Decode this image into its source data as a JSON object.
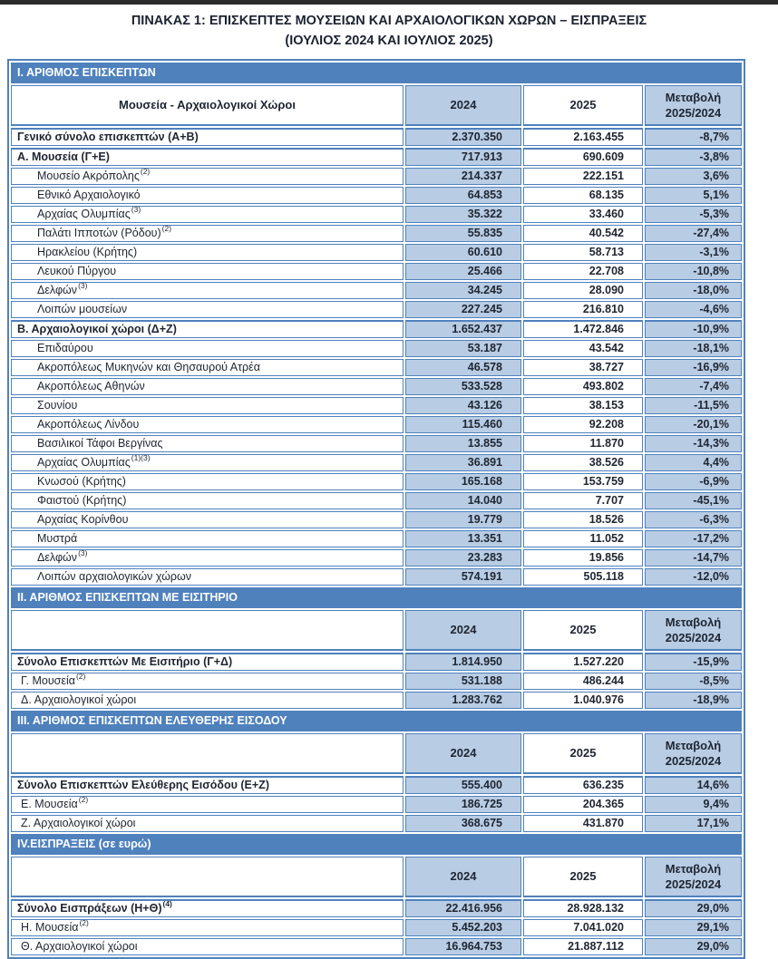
{
  "colors": {
    "accent_blue": "#4F81BD",
    "light_blue": "#B8CCE4",
    "border_blue": "#4F81BD",
    "text_dark": "#1E2531",
    "top_strip": "#2B2B2B"
  },
  "title": {
    "line1": "ΠΙΝΑΚΑΣ 1: ΕΠΙΣΚΕΠΤΕΣ ΜΟΥΣΕΙΩΝ ΚΑΙ ΑΡΧΑΙΟΛΟΓΙΚΩΝ ΧΩΡΩΝ – ΕΙΣΠΡΑΞΕΙΣ",
    "line2": "(ΙΟΥΛΙΟΣ 2024 ΚΑΙ ΙΟΥΛΙΟΣ 2025)"
  },
  "table": {
    "year_headers": {
      "y2024": "2024",
      "y2025": "2025",
      "change": "Μεταβολή\n2025/2024"
    },
    "sections": [
      {
        "title": "Ι. ΑΡΙΘΜΟΣ ΕΠΙΣΚΕΠΤΩΝ",
        "header_label": "Μουσεία - Αρχαιολογικοί Χώροι",
        "rows": [
          {
            "label": "Γενικό σύνολο επισκεπτών (Α+Β)",
            "sup": "",
            "v2024": "2.370.350",
            "v2025": "2.163.455",
            "change": "-8,7%",
            "style": "total"
          },
          {
            "label": "Α. Μουσεία (Γ+Ε)",
            "sup": "",
            "v2024": "717.913",
            "v2025": "690.609",
            "change": "-3,8%",
            "style": "total"
          },
          {
            "label": "Μουσείο Ακρόπολης",
            "sup": "(2)",
            "v2024": "214.337",
            "v2025": "222.151",
            "change": "3,6%",
            "style": "sub"
          },
          {
            "label": "Εθνικό Αρχαιολογικό",
            "sup": "",
            "v2024": "64.853",
            "v2025": "68.135",
            "change": "5,1%",
            "style": "sub"
          },
          {
            "label": "Αρχαίας Ολυμπίας",
            "sup": "(3)",
            "v2024": "35.322",
            "v2025": "33.460",
            "change": "-5,3%",
            "style": "sub"
          },
          {
            "label": "Παλάτι Ιπποτών (Ρόδου)",
            "sup": "(2)",
            "v2024": "55.835",
            "v2025": "40.542",
            "change": "-27,4%",
            "style": "sub"
          },
          {
            "label": "Ηρακλείου (Κρήτης)",
            "sup": "",
            "v2024": "60.610",
            "v2025": "58.713",
            "change": "-3,1%",
            "style": "sub"
          },
          {
            "label": "Λευκού Πύργου",
            "sup": "",
            "v2024": "25.466",
            "v2025": "22.708",
            "change": "-10,8%",
            "style": "sub"
          },
          {
            "label": "Δελφών",
            "sup": "(3)",
            "v2024": "34.245",
            "v2025": "28.090",
            "change": "-18,0%",
            "style": "sub"
          },
          {
            "label": "Λοιπών μουσείων",
            "sup": "",
            "v2024": "227.245",
            "v2025": "216.810",
            "change": "-4,6%",
            "style": "sub"
          },
          {
            "label": "Β. Αρχαιολογικοί χώροι (Δ+Ζ)",
            "sup": "",
            "v2024": "1.652.437",
            "v2025": "1.472.846",
            "change": "-10,9%",
            "style": "total"
          },
          {
            "label": "Επιδαύρου",
            "sup": "",
            "v2024": "53.187",
            "v2025": "43.542",
            "change": "-18,1%",
            "style": "sub"
          },
          {
            "label": "Ακροπόλεως Μυκηνών και Θησαυρού Ατρέα",
            "sup": "",
            "v2024": "46.578",
            "v2025": "38.727",
            "change": "-16,9%",
            "style": "sub"
          },
          {
            "label": "Ακροπόλεως Αθηνών",
            "sup": "",
            "v2024": "533.528",
            "v2025": "493.802",
            "change": "-7,4%",
            "style": "sub"
          },
          {
            "label": "Σουνίου",
            "sup": "",
            "v2024": "43.126",
            "v2025": "38.153",
            "change": "-11,5%",
            "style": "sub"
          },
          {
            "label": "Ακροπόλεως Λίνδου",
            "sup": "",
            "v2024": "115.460",
            "v2025": "92.208",
            "change": "-20,1%",
            "style": "sub"
          },
          {
            "label": "Βασιλικοί Τάφοι Βεργίνας",
            "sup": "",
            "v2024": "13.855",
            "v2025": "11.870",
            "change": "-14,3%",
            "style": "sub"
          },
          {
            "label": "Αρχαίας Ολυμπίας",
            "sup": "(1)(3)",
            "v2024": "36.891",
            "v2025": "38.526",
            "change": "4,4%",
            "style": "sub"
          },
          {
            "label": "Κνωσού (Κρήτης)",
            "sup": "",
            "v2024": "165.168",
            "v2025": "153.759",
            "change": "-6,9%",
            "style": "sub"
          },
          {
            "label": "Φαιστού (Κρήτης)",
            "sup": "",
            "v2024": "14.040",
            "v2025": "7.707",
            "change": "-45,1%",
            "style": "sub"
          },
          {
            "label": "Αρχαίας Κορίνθου",
            "sup": "",
            "v2024": "19.779",
            "v2025": "18.526",
            "change": "-6,3%",
            "style": "sub"
          },
          {
            "label": "Μυστρά",
            "sup": "",
            "v2024": "13.351",
            "v2025": "11.052",
            "change": "-17,2%",
            "style": "sub"
          },
          {
            "label": "Δελφών",
            "sup": "(3)",
            "v2024": "23.283",
            "v2025": "19.856",
            "change": "-14,7%",
            "style": "sub"
          },
          {
            "label": "Λοιπών αρχαιολογικών χώρων",
            "sup": "",
            "v2024": "574.191",
            "v2025": "505.118",
            "change": "-12,0%",
            "style": "sub"
          }
        ]
      },
      {
        "title": "ΙΙ. ΑΡΙΘΜΟΣ ΕΠΙΣΚΕΠΤΩΝ ΜΕ ΕΙΣΙΤΗΡΙΟ",
        "header_label": "",
        "rows": [
          {
            "label": "Σύνολο Επισκεπτών Με Εισιτήριο (Γ+Δ)",
            "sup": "",
            "v2024": "1.814.950",
            "v2025": "1.527.220",
            "change": "-15,9%",
            "style": "total"
          },
          {
            "label": "Γ. Μουσεία",
            "sup": "(2)",
            "v2024": "531.188",
            "v2025": "486.244",
            "change": "-8,5%",
            "style": "item"
          },
          {
            "label": "Δ. Αρχαιολογικοί χώροι",
            "sup": "",
            "v2024": "1.283.762",
            "v2025": "1.040.976",
            "change": "-18,9%",
            "style": "item"
          }
        ]
      },
      {
        "title": "ΙΙΙ. ΑΡΙΘΜΟΣ ΕΠΙΣΚΕΠΤΩΝ ΕΛΕΥΘΕΡΗΣ ΕΙΣΟΔΟΥ",
        "header_label": "",
        "rows": [
          {
            "label": "Σύνολο Επισκεπτών Ελεύθερης Εισόδου (Ε+Ζ)",
            "sup": "",
            "v2024": "555.400",
            "v2025": "636.235",
            "change": "14,6%",
            "style": "total"
          },
          {
            "label": "Ε. Μουσεία",
            "sup": "(2)",
            "v2024": "186.725",
            "v2025": "204.365",
            "change": "9,4%",
            "style": "item"
          },
          {
            "label": "Ζ. Αρχαιολογικοί χώροι",
            "sup": "",
            "v2024": "368.675",
            "v2025": "431.870",
            "change": "17,1%",
            "style": "item"
          }
        ]
      },
      {
        "title": "IV.ΕΙΣΠΡΑΞΕΙΣ (σε ευρώ)",
        "header_label": "",
        "rows": [
          {
            "label": "Σύνολο Εισπράξεων (Η+Θ)",
            "sup": "(4)",
            "v2024": "22.416.956",
            "v2025": "28.928.132",
            "change": "29,0%",
            "style": "total"
          },
          {
            "label": "Η. Μουσεία",
            "sup": "(2)",
            "v2024": "5.452.203",
            "v2025": "7.041.020",
            "change": "29,1%",
            "style": "item"
          },
          {
            "label": "Θ. Αρχαιολογικοί χώροι",
            "sup": "",
            "v2024": "16.964.753",
            "v2025": "21.887.112",
            "change": "29,0%",
            "style": "item"
          }
        ]
      }
    ]
  }
}
